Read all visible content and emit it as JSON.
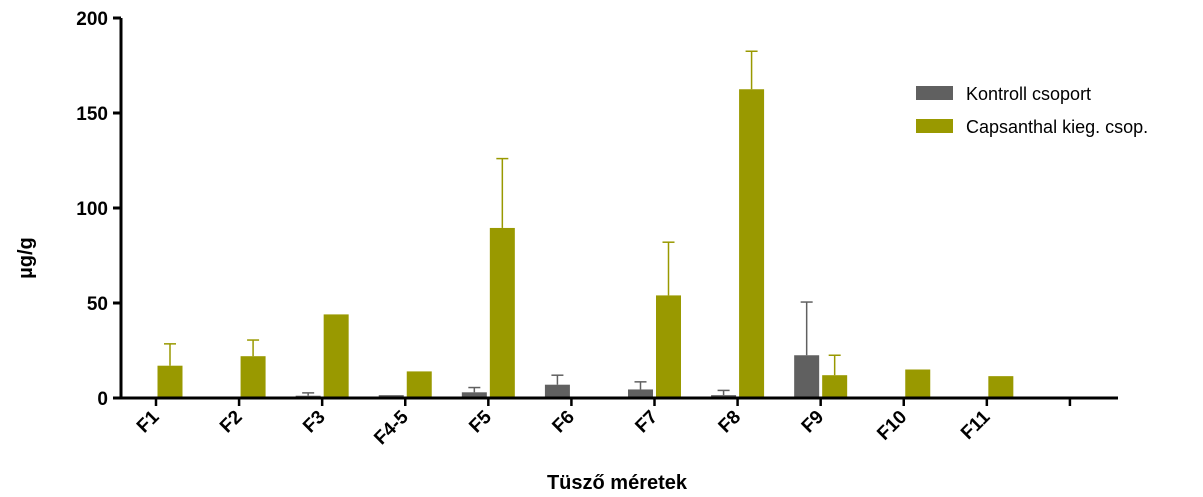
{
  "chart_data": {
    "type": "bar",
    "title": "",
    "xlabel": "Tüsző méretek",
    "ylabel": "µg/g",
    "ylim": [
      0,
      200
    ],
    "yticks": [
      0,
      50,
      100,
      150,
      200
    ],
    "categories": [
      "F1",
      "F2",
      "F3",
      "F4-5",
      "F5",
      "F6",
      "F7",
      "F8",
      "F9",
      "F10",
      "F11",
      ""
    ],
    "series": [
      {
        "name": "Kontroll csoport",
        "color": "#606060",
        "values": [
          0.5,
          0.5,
          1.2,
          1.5,
          3,
          7,
          4.5,
          1.5,
          22.5,
          0,
          0,
          0.5
        ],
        "errors": [
          0,
          0,
          1.5,
          0,
          2.5,
          5,
          4,
          2.5,
          28,
          0,
          0,
          0
        ]
      },
      {
        "name": "Capsanthal kieg. csop.",
        "color": "#999900",
        "values": [
          17,
          22,
          44,
          14,
          89.5,
          0,
          54,
          162.5,
          12,
          15,
          11.5,
          0
        ],
        "errors": [
          11.5,
          8.5,
          0,
          0,
          36.5,
          0,
          28,
          20,
          10.5,
          0,
          0,
          0
        ]
      }
    ],
    "legend": "top-right",
    "grid": false
  }
}
